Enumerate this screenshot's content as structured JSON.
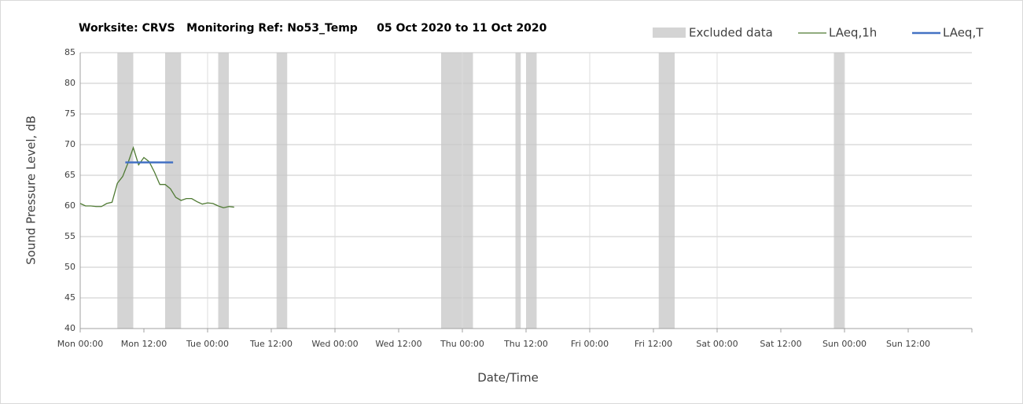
{
  "chart_data": {
    "type": "line",
    "title": "Worksite: CRVS   Monitoring Ref: No53_Temp     05 Oct 2020 to 11 Oct 2020",
    "y_label": "Sound Pressure Level, dB",
    "x_label": "Date/Time",
    "xlim": [
      0,
      168
    ],
    "xticks": [
      {
        "value": 0,
        "label": "Mon 00:00"
      },
      {
        "value": 12,
        "label": "Mon 12:00"
      },
      {
        "value": 24,
        "label": "Tue 00:00"
      },
      {
        "value": 36,
        "label": "Tue 12:00"
      },
      {
        "value": 48,
        "label": "Wed 00:00"
      },
      {
        "value": 60,
        "label": "Wed 12:00"
      },
      {
        "value": 72,
        "label": "Thu 00:00"
      },
      {
        "value": 84,
        "label": "Thu 12:00"
      },
      {
        "value": 96,
        "label": "Fri 00:00"
      },
      {
        "value": 108,
        "label": "Fri 12:00"
      },
      {
        "value": 120,
        "label": "Sat 00:00"
      },
      {
        "value": 132,
        "label": "Sat 12:00"
      },
      {
        "value": 144,
        "label": "Sun 00:00"
      },
      {
        "value": 156,
        "label": "Sun 12:00"
      }
    ],
    "ylim": [
      40,
      85
    ],
    "yticks": [
      40,
      45,
      50,
      55,
      60,
      65,
      70,
      75,
      80,
      85
    ],
    "grid": true,
    "excluded": {
      "name": "Excluded data",
      "color": "#d4d4d4",
      "ranges": [
        [
          7,
          10
        ],
        [
          16,
          19
        ],
        [
          26,
          28
        ],
        [
          37,
          39
        ],
        [
          68,
          74
        ],
        [
          82,
          83
        ],
        [
          84,
          86
        ],
        [
          109,
          112
        ],
        [
          142,
          144
        ]
      ]
    },
    "series": [
      {
        "name": "LAeq,1h",
        "color": "#4f7a33",
        "x": [
          0,
          1,
          2,
          3,
          4,
          5,
          6,
          7,
          8,
          9,
          10,
          11,
          12,
          13,
          14,
          15,
          16,
          17,
          18,
          19,
          20,
          21,
          22,
          23,
          24,
          25,
          26,
          27,
          28,
          29
        ],
        "values": [
          60.4,
          60,
          60,
          59.9,
          59.9,
          60.4,
          60.6,
          63.7,
          64.8,
          67,
          69.5,
          66.7,
          67.9,
          67.2,
          65.5,
          63.5,
          63.5,
          62.8,
          61.4,
          60.9,
          61.2,
          61.2,
          60.7,
          60.3,
          60.5,
          60.4,
          60,
          59.7,
          59.9,
          59.8
        ]
      },
      {
        "name": "LAeq,T",
        "color": "#4472c4",
        "x": [
          8.5,
          17.5
        ],
        "values": [
          67.1,
          67.1
        ]
      }
    ]
  }
}
